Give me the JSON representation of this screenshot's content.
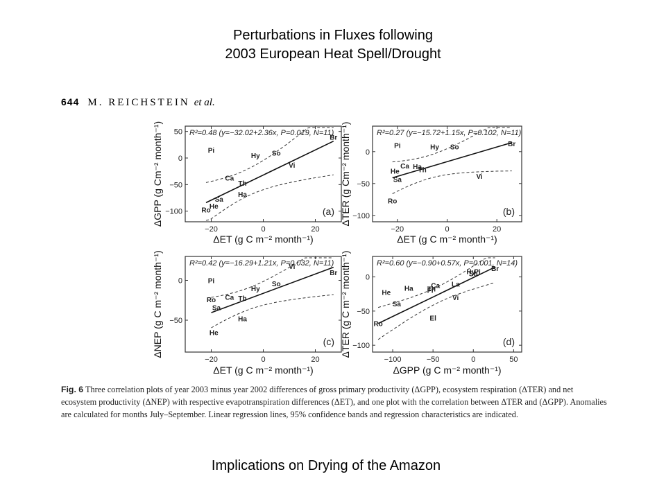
{
  "slide": {
    "title_line1": "Perturbations in Fluxes following",
    "title_line2": "2003 European Heat Spell/Drought",
    "footer": "Implications on Drying of the Amazon"
  },
  "figure_header": {
    "page": "644",
    "author": "M. REICHSTEIN",
    "etal": "et al."
  },
  "caption": {
    "label": "Fig. 6",
    "text": "Three correlation plots of year 2003 minus year 2002 differences of gross primary productivity (ΔGPP), ecosystem respiration (ΔTER) and net ecosystem productivity (ΔNEP) with respective evapotranspiration differences (ΔET), and one plot with the correlation between ΔTER and (ΔGPP). Anomalies are calculated for months July–September. Linear regression lines, 95% confidence bands and regression characteristics are indicated."
  },
  "chart_data": [
    {
      "panel": "(a)",
      "type": "scatter",
      "stats": "R²=0.48 (y=−32.02+2.36x, P=0.019, N=11)",
      "xlabel": "ΔET (g C m⁻² month⁻¹)",
      "ylabel": "ΔGPP (g Cm⁻² month⁻¹)",
      "xlim": [
        -30,
        30
      ],
      "ylim": [
        -120,
        60
      ],
      "xticks": [
        -20,
        0,
        20
      ],
      "yticks": [
        50,
        0,
        -50,
        -100
      ],
      "regression": {
        "intercept": -32.02,
        "slope": 2.36
      },
      "points": [
        {
          "label": "Pi",
          "x": -20,
          "y": 15
        },
        {
          "label": "Hy",
          "x": -3,
          "y": 5
        },
        {
          "label": "So",
          "x": 5,
          "y": 10
        },
        {
          "label": "Br",
          "x": 27,
          "y": 40
        },
        {
          "label": "Vi",
          "x": 11,
          "y": -13
        },
        {
          "label": "Ca",
          "x": -13,
          "y": -37
        },
        {
          "label": "Th",
          "x": -8,
          "y": -47
        },
        {
          "label": "Ha",
          "x": -8,
          "y": -68
        },
        {
          "label": "Sa",
          "x": -17,
          "y": -77
        },
        {
          "label": "He",
          "x": -19,
          "y": -90
        },
        {
          "label": "Ro",
          "x": -22,
          "y": -97
        }
      ]
    },
    {
      "panel": "(b)",
      "type": "scatter",
      "stats": "R²=0.27 (y=−15.72+1.15x, P=0.102, N=11)",
      "xlabel": "ΔET (g C m⁻² month⁻¹)",
      "ylabel": "ΔTER (g Cm⁻² month⁻¹)",
      "xlim": [
        -30,
        30
      ],
      "ylim": [
        -110,
        40
      ],
      "xticks": [
        -20,
        0,
        20
      ],
      "yticks": [
        0,
        -50,
        -100
      ],
      "regression": {
        "intercept": -15.72,
        "slope": 1.15
      },
      "points": [
        {
          "label": "Pi",
          "x": -20,
          "y": 10
        },
        {
          "label": "Hy",
          "x": -5,
          "y": 8
        },
        {
          "label": "So",
          "x": 3,
          "y": 8
        },
        {
          "label": "Br",
          "x": 26,
          "y": 13
        },
        {
          "label": "Ca",
          "x": -17,
          "y": -22
        },
        {
          "label": "Ha",
          "x": -12,
          "y": -23
        },
        {
          "label": "He",
          "x": -21,
          "y": -30
        },
        {
          "label": "Th",
          "x": -10,
          "y": -28
        },
        {
          "label": "Sa",
          "x": -20,
          "y": -43
        },
        {
          "label": "Vi",
          "x": 13,
          "y": -38
        },
        {
          "label": "Ro",
          "x": -22,
          "y": -77
        }
      ]
    },
    {
      "panel": "(c)",
      "type": "scatter",
      "stats": "R²=0.42 (y=−16.29+1.21x, P=0.032, N=11)",
      "xlabel": "ΔET (g C m⁻² month⁻¹)",
      "ylabel": "ΔNEP (g C m⁻² month⁻¹)",
      "xlim": [
        -30,
        30
      ],
      "ylim": [
        -90,
        30
      ],
      "xticks": [
        -20,
        0,
        20
      ],
      "yticks": [
        0,
        -50
      ],
      "regression": {
        "intercept": -16.29,
        "slope": 1.21
      },
      "points": [
        {
          "label": "Vi",
          "x": 11,
          "y": 18
        },
        {
          "label": "Br",
          "x": 27,
          "y": 10
        },
        {
          "label": "Pi",
          "x": -20,
          "y": 0
        },
        {
          "label": "So",
          "x": 5,
          "y": -4
        },
        {
          "label": "Hy",
          "x": -3,
          "y": -10
        },
        {
          "label": "Ro",
          "x": -20,
          "y": -24
        },
        {
          "label": "Ca",
          "x": -13,
          "y": -21
        },
        {
          "label": "Th",
          "x": -8,
          "y": -22
        },
        {
          "label": "Sa",
          "x": -18,
          "y": -34
        },
        {
          "label": "Ha",
          "x": -8,
          "y": -48
        },
        {
          "label": "He",
          "x": -19,
          "y": -65
        }
      ]
    },
    {
      "panel": "(d)",
      "type": "scatter",
      "stats": "R²=0.60 (y=−0.90+0.57x, P=0.001, N=14)",
      "xlabel": "ΔGPP (g C m⁻² month⁻¹)",
      "ylabel": "ΔTER (g C m⁻² month⁻¹)",
      "xlim": [
        -125,
        60
      ],
      "ylim": [
        -110,
        30
      ],
      "xticks": [
        -100,
        -50,
        0,
        50
      ],
      "yticks": [
        0,
        -50,
        -100
      ],
      "regression": {
        "intercept": -0.9,
        "slope": 0.57
      },
      "points": [
        {
          "label": "Br",
          "x": 27,
          "y": 13
        },
        {
          "label": "Hy",
          "x": -3,
          "y": 8
        },
        {
          "label": "Pi",
          "x": 5,
          "y": 8
        },
        {
          "label": "So",
          "x": 0,
          "y": 5
        },
        {
          "label": "He",
          "x": -108,
          "y": -22
        },
        {
          "label": "Ha",
          "x": -80,
          "y": -16
        },
        {
          "label": "Ca",
          "x": -47,
          "y": -12
        },
        {
          "label": "Th",
          "x": -52,
          "y": -17
        },
        {
          "label": "Fr",
          "x": -53,
          "y": -19
        },
        {
          "label": "La",
          "x": -22,
          "y": -10
        },
        {
          "label": "Vi",
          "x": -22,
          "y": -30
        },
        {
          "label": "Sa",
          "x": -95,
          "y": -39
        },
        {
          "label": "El",
          "x": -50,
          "y": -60
        },
        {
          "label": "Ro",
          "x": -118,
          "y": -68
        }
      ]
    }
  ]
}
